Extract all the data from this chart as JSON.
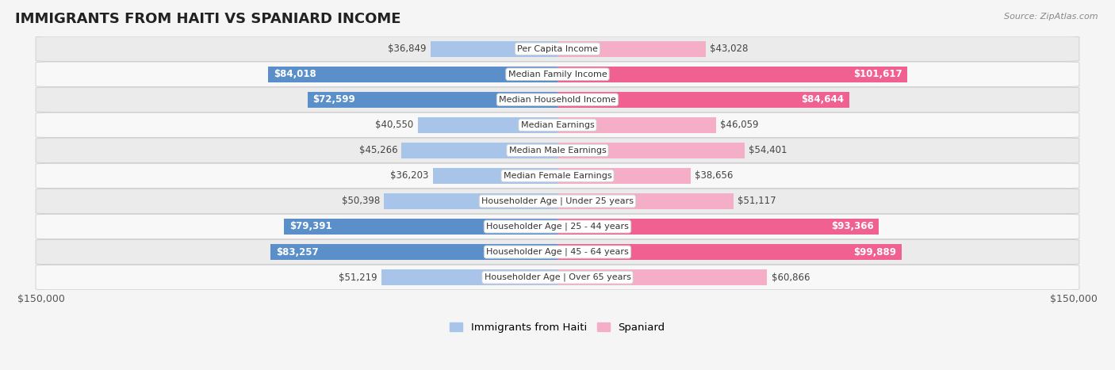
{
  "title": "IMMIGRANTS FROM HAITI VS SPANIARD INCOME",
  "source": "Source: ZipAtlas.com",
  "categories": [
    "Per Capita Income",
    "Median Family Income",
    "Median Household Income",
    "Median Earnings",
    "Median Male Earnings",
    "Median Female Earnings",
    "Householder Age | Under 25 years",
    "Householder Age | 25 - 44 years",
    "Householder Age | 45 - 64 years",
    "Householder Age | Over 65 years"
  ],
  "haiti_values": [
    36849,
    84018,
    72599,
    40550,
    45266,
    36203,
    50398,
    79391,
    83257,
    51219
  ],
  "spaniard_values": [
    43028,
    101617,
    84644,
    46059,
    54401,
    38656,
    51117,
    93366,
    99889,
    60866
  ],
  "haiti_color_light": "#a8c4e8",
  "haiti_color_dark": "#5a8fc9",
  "spaniard_color_light": "#f5aec8",
  "spaniard_color_dark": "#f06090",
  "haiti_label": "Immigrants from Haiti",
  "spaniard_label": "Spaniard",
  "x_max": 150000,
  "x_label_left": "$150,000",
  "x_label_right": "$150,000",
  "row_even_color": "#ebebeb",
  "row_odd_color": "#f8f8f8",
  "row_border_color": "#cccccc",
  "bg_color": "#f5f5f5",
  "title_fontsize": 13,
  "value_fontsize": 8.5,
  "cat_fontsize": 8.0,
  "haiti_dark_threshold": 65000,
  "spaniard_dark_threshold": 80000
}
